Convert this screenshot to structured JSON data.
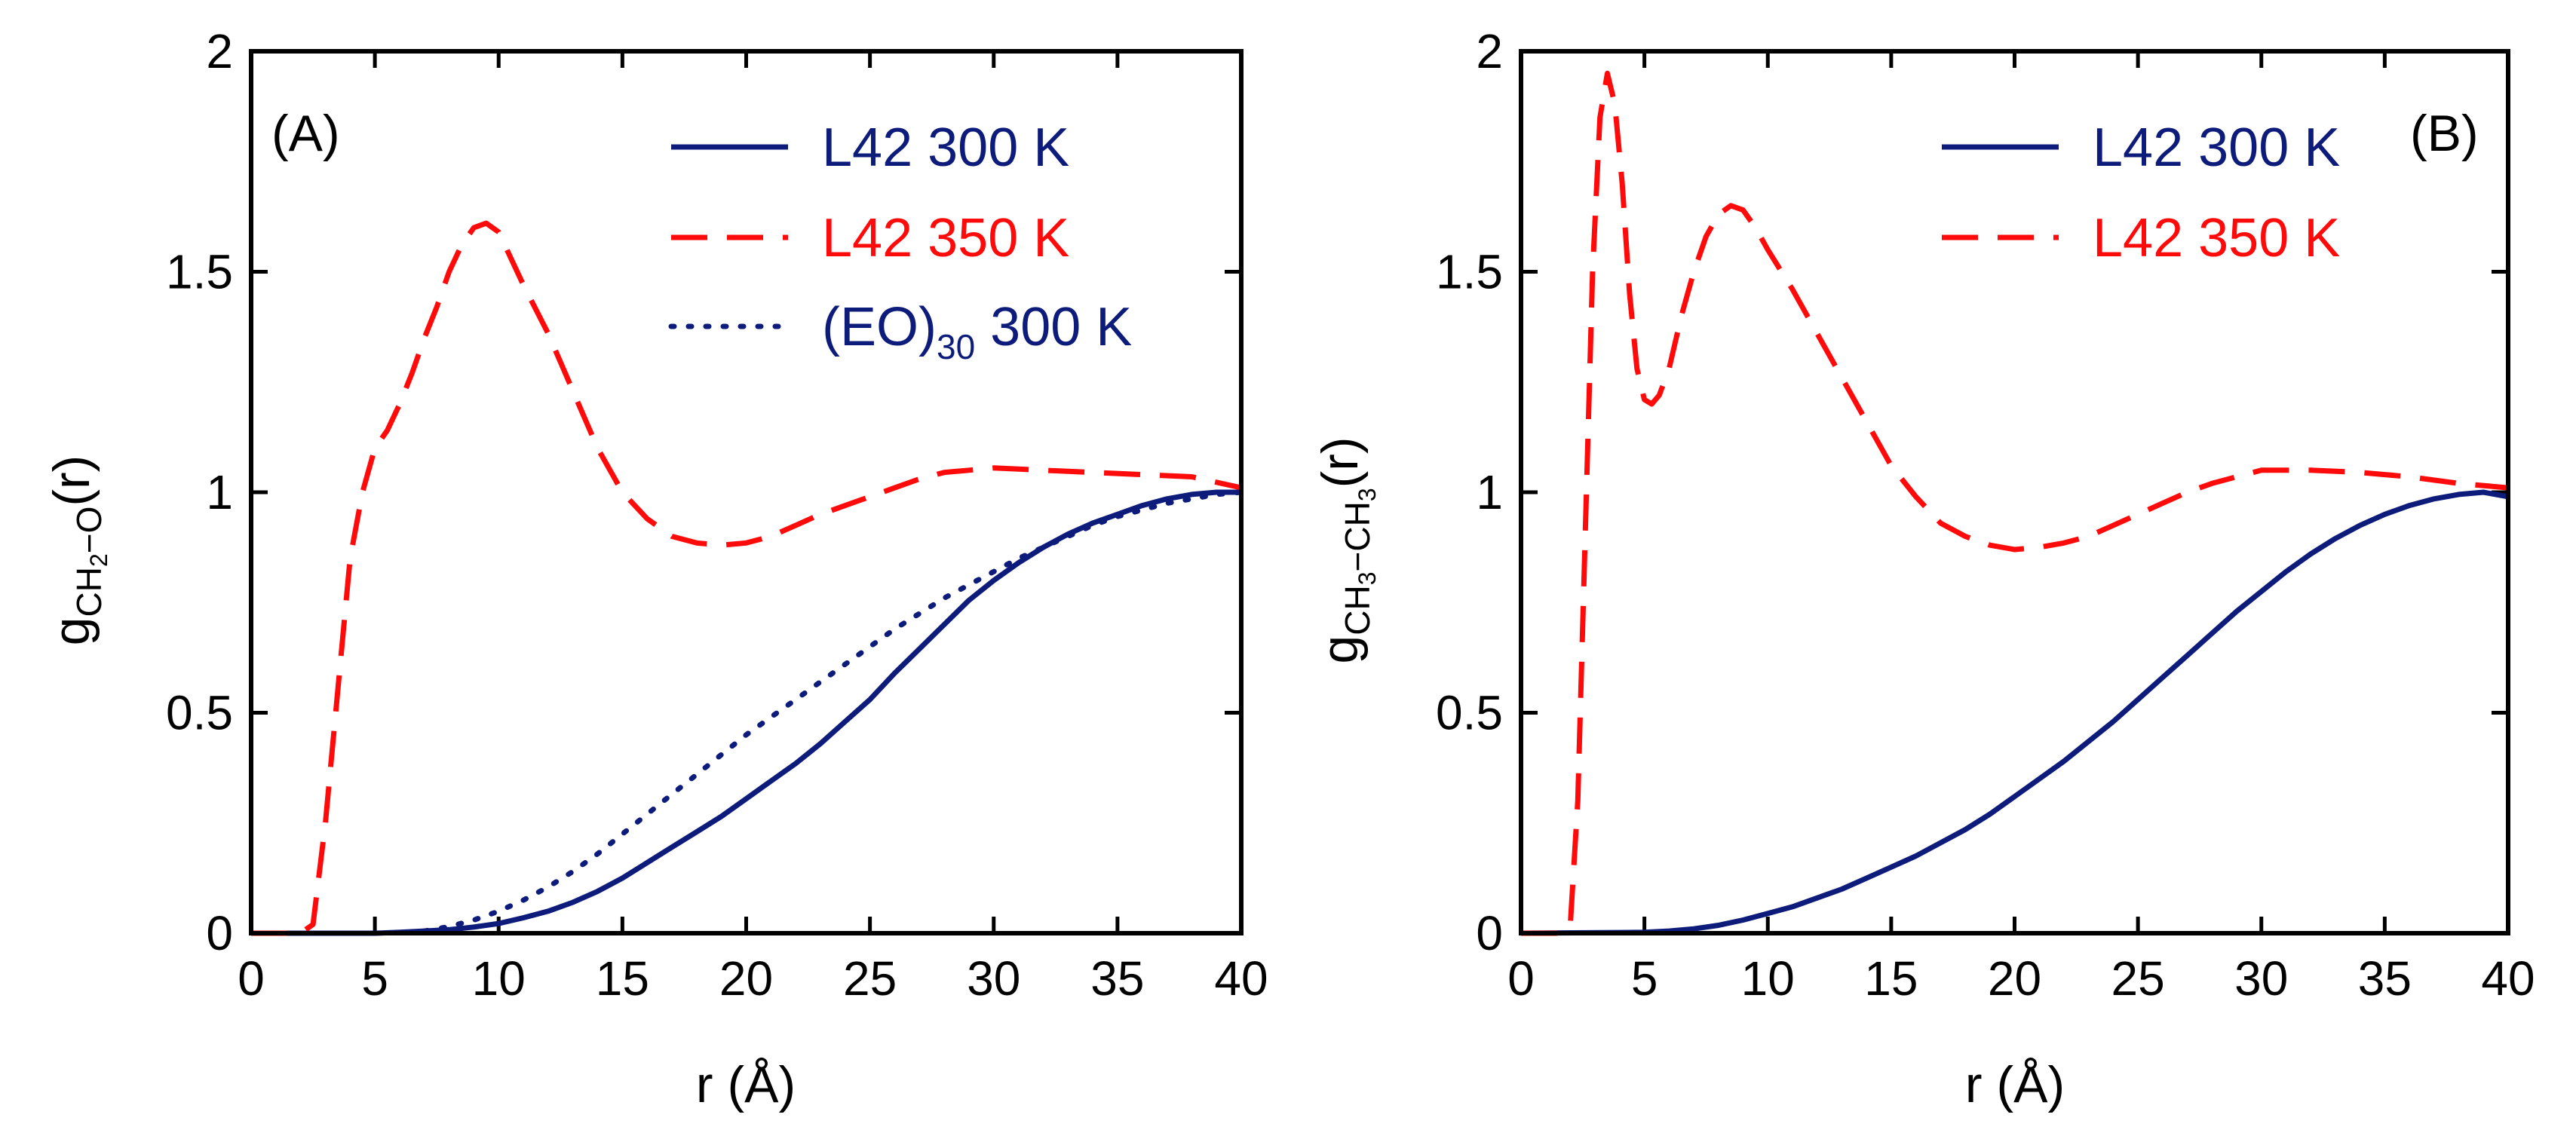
{
  "colors": {
    "navy": "#0d1c7a",
    "red": "#ff0a0a",
    "axis": "#000000"
  },
  "chart_data": [
    {
      "type": "line",
      "panel_label": "(A)",
      "xlabel": "r (Å)",
      "ylabel": {
        "g": "g",
        "sub_a": "CH",
        "sub_a2": "2",
        "sub_sep": "−O",
        "tail": "(r)"
      },
      "xlim": [
        0,
        40
      ],
      "ylim": [
        0,
        2
      ],
      "xticks": [
        "0",
        "5",
        "10",
        "15",
        "20",
        "25",
        "30",
        "35",
        "40"
      ],
      "yticks": [
        "0",
        "0.5",
        "1",
        "1.5",
        "2"
      ],
      "legend_position": "top-right",
      "series": [
        {
          "name": "L42 300 K",
          "style": "solid",
          "color": "#0d1c7a",
          "x": [
            0,
            5,
            6,
            7,
            8,
            9,
            10,
            11,
            12,
            13,
            14,
            15,
            16,
            17,
            18,
            19,
            20,
            21,
            22,
            23,
            24,
            25,
            26,
            27,
            28,
            29,
            30,
            31,
            32,
            33,
            34,
            35,
            36,
            37,
            38,
            39,
            40
          ],
          "y": [
            0,
            0,
            0.002,
            0.005,
            0.008,
            0.014,
            0.022,
            0.035,
            0.05,
            0.07,
            0.095,
            0.125,
            0.16,
            0.195,
            0.23,
            0.265,
            0.305,
            0.345,
            0.385,
            0.43,
            0.48,
            0.53,
            0.59,
            0.645,
            0.7,
            0.755,
            0.8,
            0.84,
            0.875,
            0.905,
            0.93,
            0.95,
            0.97,
            0.985,
            0.995,
            1.0,
            1.0
          ]
        },
        {
          "name": "L42 350 K",
          "style": "dashed",
          "color": "#ff0a0a",
          "x": [
            0,
            2,
            2.5,
            3,
            3.5,
            4,
            4.5,
            5,
            5.5,
            6,
            6.5,
            7,
            7.5,
            8,
            8.5,
            9,
            9.5,
            10,
            11,
            12,
            13,
            14,
            15,
            16,
            17,
            18,
            19,
            20,
            21,
            22,
            23,
            24,
            25,
            26,
            27,
            28,
            29,
            30,
            32,
            34,
            36,
            38,
            40
          ],
          "y": [
            0,
            0,
            0.02,
            0.25,
            0.55,
            0.85,
            1.0,
            1.1,
            1.14,
            1.2,
            1.27,
            1.35,
            1.42,
            1.5,
            1.56,
            1.6,
            1.61,
            1.59,
            1.47,
            1.36,
            1.23,
            1.1,
            1.0,
            0.94,
            0.9,
            0.885,
            0.88,
            0.885,
            0.9,
            0.925,
            0.95,
            0.97,
            0.99,
            1.01,
            1.03,
            1.045,
            1.05,
            1.055,
            1.05,
            1.045,
            1.04,
            1.035,
            1.01
          ]
        },
        {
          "name": "(EO)₃₀ 300 K",
          "legend_main": "(EO)",
          "legend_sub": "30",
          "legend_tail": " 300 K",
          "style": "dotted",
          "color": "#0d1c7a",
          "x": [
            7,
            8,
            9,
            10,
            11,
            12,
            13,
            14,
            15,
            16,
            17,
            18,
            19,
            20,
            21,
            22,
            23,
            24,
            25,
            26,
            27,
            28,
            29,
            30,
            31,
            32,
            33,
            34,
            35,
            36,
            37,
            38,
            39,
            40
          ],
          "y": [
            0.005,
            0.015,
            0.03,
            0.05,
            0.075,
            0.105,
            0.14,
            0.18,
            0.225,
            0.27,
            0.315,
            0.36,
            0.405,
            0.45,
            0.49,
            0.53,
            0.57,
            0.61,
            0.65,
            0.69,
            0.725,
            0.76,
            0.79,
            0.82,
            0.85,
            0.875,
            0.9,
            0.925,
            0.945,
            0.96,
            0.975,
            0.985,
            0.995,
            1.0
          ]
        }
      ]
    },
    {
      "type": "line",
      "panel_label": "(B)",
      "xlabel": "r (Å)",
      "ylabel": {
        "g": "g",
        "sub_a": "CH",
        "sub_a2": "3",
        "sub_sep": "−CH",
        "sub_b2": "3",
        "tail": "(r)"
      },
      "xlim": [
        0,
        40
      ],
      "ylim": [
        0,
        2
      ],
      "xticks": [
        "0",
        "5",
        "10",
        "15",
        "20",
        "25",
        "30",
        "35",
        "40"
      ],
      "yticks": [
        "0",
        "0.5",
        "1",
        "1.5",
        "2"
      ],
      "legend_position": "top-right",
      "series": [
        {
          "name": "L42 300 K",
          "style": "solid",
          "color": "#0d1c7a",
          "x": [
            0,
            5,
            6,
            7,
            8,
            9,
            10,
            11,
            12,
            13,
            14,
            15,
            16,
            17,
            18,
            19,
            20,
            21,
            22,
            23,
            24,
            25,
            26,
            27,
            28,
            29,
            30,
            31,
            32,
            33,
            34,
            35,
            36,
            37,
            38,
            39,
            40
          ],
          "y": [
            0,
            0.002,
            0.005,
            0.01,
            0.018,
            0.03,
            0.045,
            0.06,
            0.08,
            0.1,
            0.125,
            0.15,
            0.175,
            0.205,
            0.235,
            0.27,
            0.31,
            0.35,
            0.39,
            0.435,
            0.48,
            0.53,
            0.58,
            0.63,
            0.68,
            0.73,
            0.775,
            0.82,
            0.86,
            0.895,
            0.925,
            0.95,
            0.97,
            0.985,
            0.995,
            1.0,
            0.99
          ]
        },
        {
          "name": "L42 350 K",
          "style": "dashed",
          "color": "#ff0a0a",
          "x": [
            0,
            1.5,
            2,
            2.3,
            2.6,
            2.9,
            3.2,
            3.5,
            3.8,
            4.1,
            4.4,
            4.7,
            5,
            5.3,
            5.6,
            6,
            6.5,
            7,
            7.5,
            8,
            8.5,
            9,
            9.5,
            10,
            11,
            12,
            13,
            14,
            15,
            16,
            17,
            18,
            19,
            20,
            21,
            22,
            23,
            24,
            25,
            26,
            27,
            28,
            29,
            30,
            32,
            34,
            36,
            38,
            40
          ],
          "y": [
            0,
            0,
            0.02,
            0.3,
            0.9,
            1.5,
            1.85,
            1.95,
            1.88,
            1.7,
            1.45,
            1.28,
            1.21,
            1.2,
            1.22,
            1.28,
            1.4,
            1.5,
            1.58,
            1.63,
            1.65,
            1.64,
            1.6,
            1.55,
            1.46,
            1.36,
            1.26,
            1.16,
            1.06,
            0.99,
            0.93,
            0.9,
            0.88,
            0.87,
            0.875,
            0.885,
            0.9,
            0.925,
            0.95,
            0.975,
            1.0,
            1.02,
            1.035,
            1.05,
            1.05,
            1.045,
            1.035,
            1.02,
            1.01
          ]
        }
      ]
    }
  ]
}
